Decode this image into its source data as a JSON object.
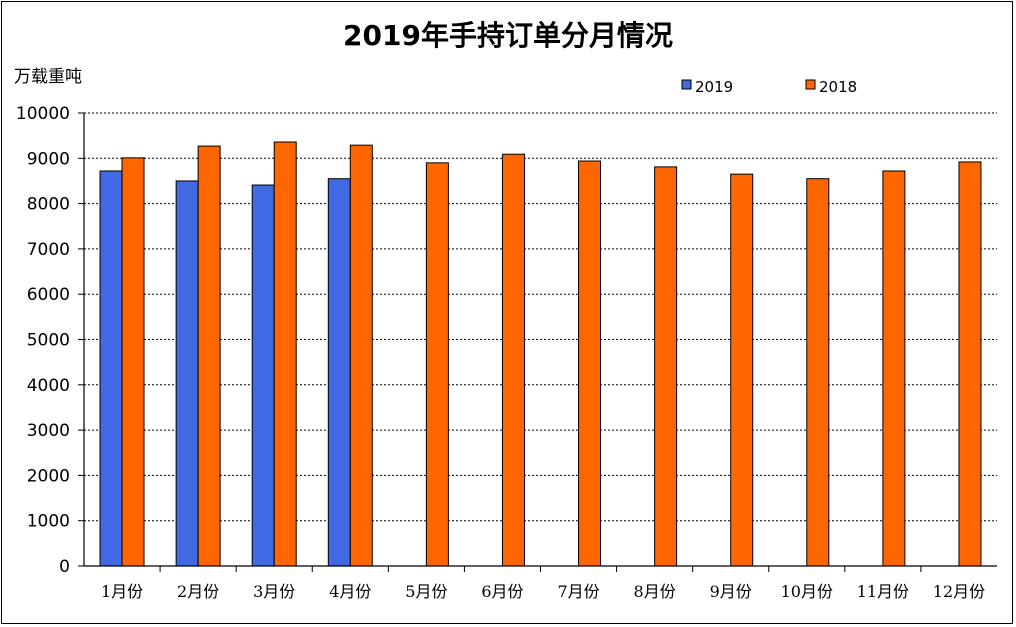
{
  "chart_data": {
    "type": "bar",
    "title": "2019年手持订单分月情况",
    "ylabel": "万载重吨",
    "xlabel": "",
    "ylim": [
      0,
      10000
    ],
    "yticks": [
      0,
      1000,
      2000,
      3000,
      4000,
      5000,
      6000,
      7000,
      8000,
      9000,
      10000
    ],
    "grid": true,
    "legend_position": "top-right",
    "categories": [
      "1月份",
      "2月份",
      "3月份",
      "4月份",
      "5月份",
      "6月份",
      "7月份",
      "8月份",
      "9月份",
      "10月份",
      "11月份",
      "12月份"
    ],
    "series": [
      {
        "name": "2019",
        "color": "#4169E1",
        "values": [
          8720,
          8500,
          8410,
          8550,
          null,
          null,
          null,
          null,
          null,
          null,
          null,
          null
        ]
      },
      {
        "name": "2018",
        "color": "#FF6600",
        "values": [
          9010,
          9270,
          9360,
          9290,
          8900,
          9090,
          8940,
          8810,
          8650,
          8550,
          8720,
          8920
        ]
      }
    ]
  }
}
